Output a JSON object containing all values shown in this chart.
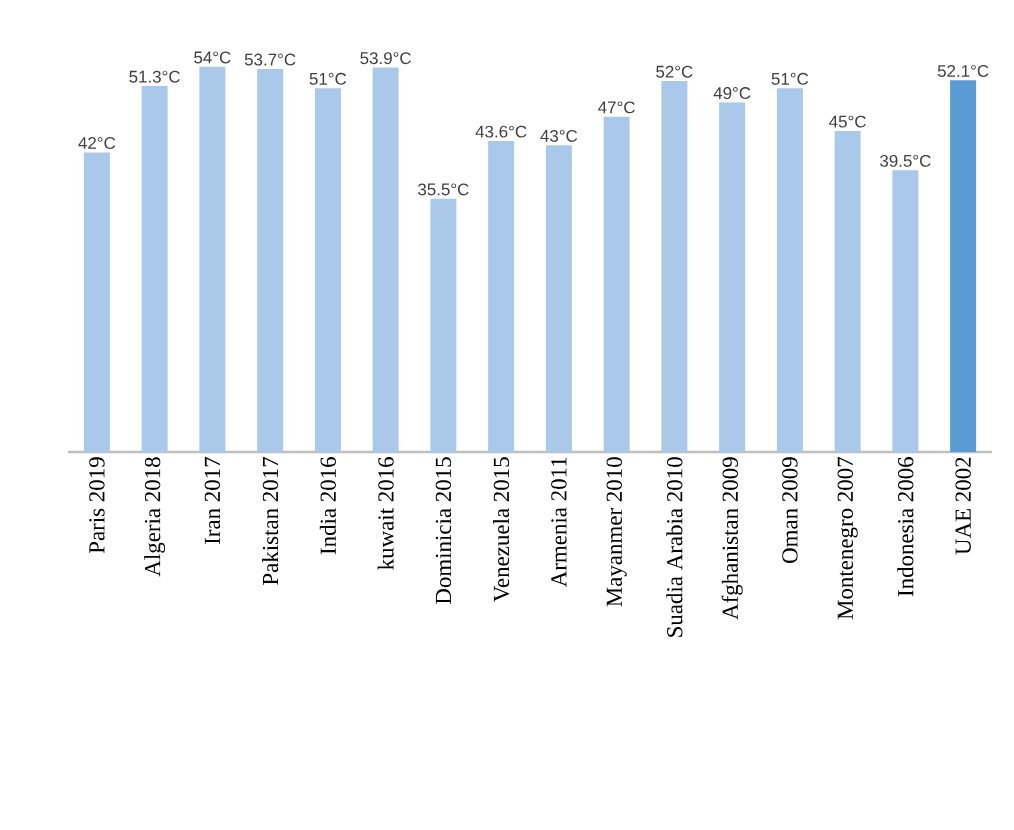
{
  "chart_data": {
    "type": "bar",
    "categories": [
      "Paris 2019",
      "Algeria 2018",
      "Iran 2017",
      "Pakistan 2017",
      "India 2016",
      "kuwait 2016",
      "Dominicia 2015",
      "Venezuela 2015",
      "Armenia 2011",
      "Mayanmer 2010",
      "Suadia Arabia 2010",
      "Afghanistan 2009",
      "Oman 2009",
      "Montenegro 2007",
      "Indonesia 2006",
      "UAE 2002"
    ],
    "values": [
      42,
      51.3,
      54,
      53.7,
      51,
      53.9,
      35.5,
      43.6,
      43,
      47,
      52,
      49,
      51,
      45,
      39.5,
      52.1
    ],
    "value_labels": [
      "42°C",
      "51.3°C",
      "54°C",
      "53.7°C",
      "51°C",
      "53.9°C",
      "35.5°C",
      "43.6°C",
      "43°C",
      "47°C",
      "52°C",
      "49°C",
      "51°C",
      "45°C",
      "39.5°C",
      "52.1°C"
    ],
    "colors": [
      "#a9c8ea",
      "#a9c8ea",
      "#a9c8ea",
      "#a9c8ea",
      "#a9c8ea",
      "#a9c8ea",
      "#a9c8ea",
      "#a9c8ea",
      "#a9c8ea",
      "#a9c8ea",
      "#a9c8ea",
      "#a9c8ea",
      "#a9c8ea",
      "#a9c8ea",
      "#a9c8ea",
      "#5b9bd5"
    ]
  }
}
